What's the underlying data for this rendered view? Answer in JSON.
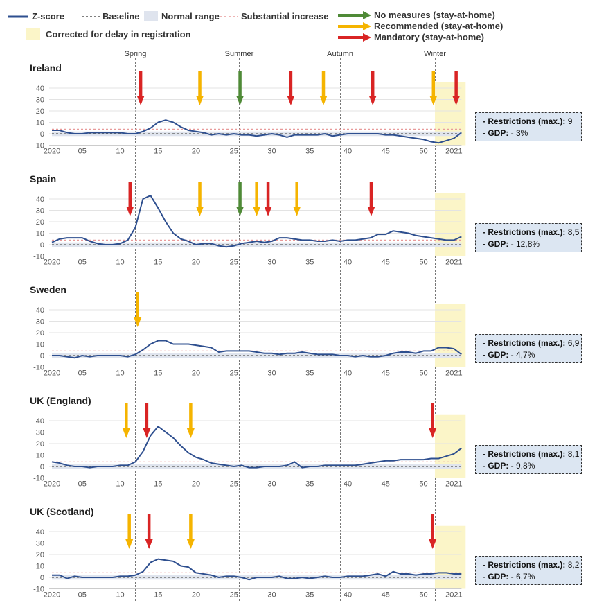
{
  "legend": {
    "zscore": "Z-score",
    "baseline": "Baseline",
    "normal_range": "Normal range",
    "substantial_increase": "Substantial increase",
    "corrected": "Corrected for delay in registration",
    "no_measures": "No measures (stay-at-home)",
    "recommended": "Recommended (stay-at-home)",
    "mandatory": "Mandatory (stay-at-home)"
  },
  "colors": {
    "zscore": "#2e4f8f",
    "baseline": "#555555",
    "normal_range": "#dfe4ee",
    "substantial": "#e89a9a",
    "corrected": "#fbf5c8",
    "no_measures": "#4f8a37",
    "recommended": "#f5b400",
    "mandatory": "#d92424"
  },
  "seasons": [
    {
      "label": "Spring",
      "week": 12
    },
    {
      "label": "Summer",
      "week": 25.7
    },
    {
      "label": "Autumn",
      "week": 39
    },
    {
      "label": "Winter",
      "week": 51.5
    }
  ],
  "chart_data": [
    {
      "type": "line",
      "title": "Ireland",
      "x_tick_labels": [
        "2020",
        "05",
        "10",
        "15",
        "20",
        "25",
        "30",
        "35",
        "40",
        "45",
        "50",
        "2021"
      ],
      "y_ticks": [
        -10,
        0,
        10,
        20,
        30,
        40
      ],
      "ylim": [
        -10,
        45
      ],
      "corrected_from": 51.5,
      "series": [
        {
          "name": "Z-score",
          "x": [
            1,
            2,
            3,
            4,
            5,
            6,
            7,
            8,
            9,
            10,
            11,
            12,
            13,
            14,
            15,
            16,
            17,
            18,
            19,
            20,
            21,
            22,
            23,
            24,
            25,
            26,
            27,
            28,
            29,
            30,
            31,
            32,
            33,
            34,
            35,
            36,
            37,
            38,
            39,
            40,
            41,
            42,
            43,
            44,
            45,
            46,
            47,
            48,
            49,
            50,
            51,
            52,
            53,
            54,
            55
          ],
          "values": [
            3,
            3,
            1,
            0,
            0,
            1,
            1,
            1,
            1,
            1,
            0,
            0,
            2,
            5,
            10,
            12,
            10,
            6,
            3,
            2,
            1,
            -1,
            0,
            -1,
            0,
            -1,
            -1,
            -2,
            -1,
            0,
            -1,
            -3,
            -1,
            -1,
            -1,
            -1,
            0,
            -2,
            -1,
            0,
            0,
            0,
            0,
            0,
            -1,
            -1,
            -2,
            -3,
            -4,
            -5,
            -7,
            -8,
            -6,
            -4,
            1
          ]
        }
      ],
      "arrows": [
        {
          "week": 12.7,
          "type": "mandatory"
        },
        {
          "week": 20.5,
          "type": "recommended"
        },
        {
          "week": 25.8,
          "type": "no_measures"
        },
        {
          "week": 32.5,
          "type": "mandatory"
        },
        {
          "week": 36.8,
          "type": "recommended"
        },
        {
          "week": 43.3,
          "type": "mandatory"
        },
        {
          "week": 51.3,
          "type": "recommended"
        },
        {
          "week": 54.3,
          "type": "mandatory"
        }
      ],
      "restrictions_label": "- Restrictions (max.):",
      "restrictions_value": "9",
      "gdp_label": "- GDP:",
      "gdp_value": "- 3%"
    },
    {
      "type": "line",
      "title": "Spain",
      "x_tick_labels": [
        "2020",
        "05",
        "10",
        "15",
        "20",
        "25",
        "30",
        "35",
        "40",
        "45",
        "50",
        "2021"
      ],
      "y_ticks": [
        -10,
        0,
        10,
        20,
        30,
        40
      ],
      "ylim": [
        -10,
        45
      ],
      "corrected_from": 51.5,
      "series": [
        {
          "name": "Z-score",
          "x": [
            1,
            2,
            3,
            4,
            5,
            6,
            7,
            8,
            9,
            10,
            11,
            12,
            13,
            14,
            15,
            16,
            17,
            18,
            19,
            20,
            21,
            22,
            23,
            24,
            25,
            26,
            27,
            28,
            29,
            30,
            31,
            32,
            33,
            34,
            35,
            36,
            37,
            38,
            39,
            40,
            41,
            42,
            43,
            44,
            45,
            46,
            47,
            48,
            49,
            50,
            51,
            52,
            53,
            54,
            55
          ],
          "values": [
            2,
            5,
            6,
            6,
            6,
            3,
            1,
            0,
            0,
            1,
            4,
            15,
            40,
            43,
            32,
            20,
            10,
            5,
            3,
            0,
            1,
            1,
            -1,
            -2,
            -1,
            1,
            2,
            3,
            2,
            3,
            6,
            6,
            5,
            4,
            4,
            3,
            3,
            4,
            3,
            4,
            4,
            5,
            6,
            9,
            9,
            12,
            11,
            10,
            8,
            7,
            6,
            5,
            4,
            4,
            7
          ]
        }
      ],
      "arrows": [
        {
          "week": 11.3,
          "type": "mandatory"
        },
        {
          "week": 20.5,
          "type": "recommended"
        },
        {
          "week": 25.8,
          "type": "no_measures"
        },
        {
          "week": 28,
          "type": "recommended"
        },
        {
          "week": 29.5,
          "type": "mandatory"
        },
        {
          "week": 33.3,
          "type": "recommended"
        },
        {
          "week": 43.1,
          "type": "mandatory"
        }
      ],
      "restrictions_label": "- Restrictions (max.):",
      "restrictions_value": "8,5",
      "gdp_label": "- GDP:",
      "gdp_value": "- 12,8%"
    },
    {
      "type": "line",
      "title": "Sweden",
      "x_tick_labels": [
        "2020",
        "05",
        "10",
        "15",
        "20",
        "25",
        "30",
        "35",
        "40",
        "45",
        "50",
        "2021"
      ],
      "y_ticks": [
        -10,
        0,
        10,
        20,
        30,
        40
      ],
      "ylim": [
        -10,
        45
      ],
      "corrected_from": 51.5,
      "series": [
        {
          "name": "Z-score",
          "x": [
            1,
            2,
            3,
            4,
            5,
            6,
            7,
            8,
            9,
            10,
            11,
            12,
            13,
            14,
            15,
            16,
            17,
            18,
            19,
            20,
            21,
            22,
            23,
            24,
            25,
            26,
            27,
            28,
            29,
            30,
            31,
            32,
            33,
            34,
            35,
            36,
            37,
            38,
            39,
            40,
            41,
            42,
            43,
            44,
            45,
            46,
            47,
            48,
            49,
            50,
            51,
            52,
            53,
            54,
            55
          ],
          "values": [
            0,
            0,
            -1,
            -2,
            0,
            -1,
            0,
            0,
            0,
            0,
            -1,
            1,
            5,
            10,
            13,
            13,
            10,
            10,
            10,
            9,
            8,
            7,
            3,
            4,
            4,
            4,
            4,
            3,
            2,
            2,
            1,
            2,
            2,
            3,
            2,
            1,
            1,
            1,
            0,
            0,
            -1,
            0,
            -1,
            -1,
            0,
            2,
            3,
            3,
            2,
            4,
            4,
            7,
            7,
            6,
            1
          ]
        }
      ],
      "arrows": [
        {
          "week": 12.3,
          "type": "recommended"
        }
      ],
      "restrictions_label": "- Restrictions (max.):",
      "restrictions_value": "6,9",
      "gdp_label": "- GDP:",
      "gdp_value": "- 4,7%"
    },
    {
      "type": "line",
      "title": "UK (England)",
      "x_tick_labels": [
        "2020",
        "05",
        "10",
        "15",
        "20",
        "25",
        "30",
        "35",
        "40",
        "45",
        "50",
        "2021"
      ],
      "y_ticks": [
        -10,
        0,
        10,
        20,
        30,
        40
      ],
      "ylim": [
        -10,
        45
      ],
      "corrected_from": 51.5,
      "series": [
        {
          "name": "Z-score",
          "x": [
            1,
            2,
            3,
            4,
            5,
            6,
            7,
            8,
            9,
            10,
            11,
            12,
            13,
            14,
            15,
            16,
            17,
            18,
            19,
            20,
            21,
            22,
            23,
            24,
            25,
            26,
            27,
            28,
            29,
            30,
            31,
            32,
            33,
            34,
            35,
            36,
            37,
            38,
            39,
            40,
            41,
            42,
            43,
            44,
            45,
            46,
            47,
            48,
            49,
            50,
            51,
            52,
            53,
            54,
            55
          ],
          "values": [
            4,
            3,
            1,
            0,
            0,
            -1,
            0,
            0,
            0,
            1,
            1,
            4,
            13,
            27,
            35,
            30,
            25,
            18,
            12,
            8,
            6,
            3,
            2,
            1,
            0,
            1,
            -1,
            -1,
            0,
            0,
            0,
            1,
            4,
            -1,
            0,
            0,
            1,
            1,
            1,
            1,
            1,
            2,
            3,
            4,
            5,
            5,
            6,
            6,
            6,
            6,
            7,
            7,
            9,
            11,
            16
          ]
        }
      ],
      "arrows": [
        {
          "week": 10.8,
          "type": "recommended"
        },
        {
          "week": 13.5,
          "type": "mandatory"
        },
        {
          "week": 19.3,
          "type": "recommended"
        },
        {
          "week": 51.2,
          "type": "mandatory"
        }
      ],
      "restrictions_label": "- Restrictions (max.):",
      "restrictions_value": "8,1",
      "gdp_label": "- GDP:",
      "gdp_value": "- 9,8%"
    },
    {
      "type": "line",
      "title": "UK (Scotland)",
      "x_tick_labels": [
        "2020",
        "05",
        "10",
        "15",
        "20",
        "25",
        "30",
        "35",
        "40",
        "45",
        "50",
        "2021"
      ],
      "y_ticks": [
        -10,
        0,
        10,
        20,
        30,
        40
      ],
      "ylim": [
        -10,
        45
      ],
      "corrected_from": 51.5,
      "series": [
        {
          "name": "Z-score",
          "x": [
            1,
            2,
            3,
            4,
            5,
            6,
            7,
            8,
            9,
            10,
            11,
            12,
            13,
            14,
            15,
            16,
            17,
            18,
            19,
            20,
            21,
            22,
            23,
            24,
            25,
            26,
            27,
            28,
            29,
            30,
            31,
            32,
            33,
            34,
            35,
            36,
            37,
            38,
            39,
            40,
            41,
            42,
            43,
            44,
            45,
            46,
            47,
            48,
            49,
            50,
            51,
            52,
            53,
            54,
            55
          ],
          "values": [
            2,
            2,
            -1,
            1,
            0,
            0,
            0,
            0,
            0,
            1,
            1,
            2,
            5,
            13,
            16,
            15,
            14,
            10,
            9,
            4,
            3,
            2,
            0,
            1,
            1,
            0,
            -2,
            0,
            0,
            0,
            1,
            -1,
            -1,
            0,
            -1,
            0,
            1,
            0,
            0,
            1,
            1,
            1,
            2,
            3,
            1,
            5,
            3,
            3,
            2,
            3,
            3,
            4,
            4,
            3,
            3
          ]
        }
      ],
      "arrows": [
        {
          "week": 11.2,
          "type": "recommended"
        },
        {
          "week": 13.8,
          "type": "mandatory"
        },
        {
          "week": 19.3,
          "type": "recommended"
        },
        {
          "week": 51.2,
          "type": "mandatory"
        }
      ],
      "restrictions_label": "- Restrictions (max.):",
      "restrictions_value": "8,2",
      "gdp_label": "- GDP:",
      "gdp_value": "- 6,7%"
    }
  ]
}
